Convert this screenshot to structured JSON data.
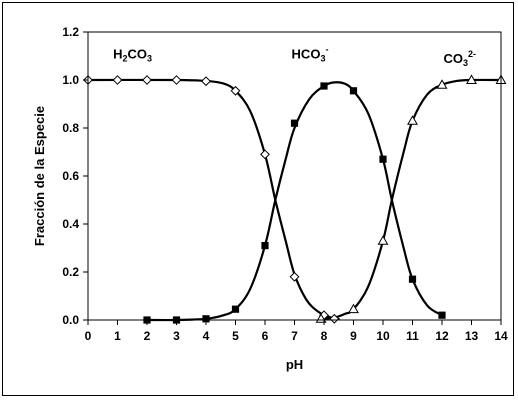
{
  "chart_data": {
    "type": "line",
    "xlabel": "pH",
    "ylabel": "Fracción de la Especie",
    "xlim": [
      0,
      14
    ],
    "ylim": [
      0,
      1.2
    ],
    "xticks": [
      0,
      1,
      2,
      3,
      4,
      5,
      6,
      7,
      8,
      9,
      10,
      11,
      12,
      13,
      14
    ],
    "yticks": [
      0.0,
      0.2,
      0.4,
      0.6,
      0.8,
      1.0,
      1.2
    ],
    "ytick_labels": [
      "0.0",
      "0.2",
      "0.4",
      "0.6",
      "0.8",
      "1.0",
      "1.2"
    ],
    "grid": false,
    "series": [
      {
        "name": "H2CO3",
        "marker": "diamond-open",
        "color": "#000000",
        "points": [
          {
            "x": 0,
            "y": 1.0
          },
          {
            "x": 1,
            "y": 1.0
          },
          {
            "x": 2,
            "y": 1.0
          },
          {
            "x": 3,
            "y": 1.0
          },
          {
            "x": 4,
            "y": 0.995
          },
          {
            "x": 5,
            "y": 0.955
          },
          {
            "x": 6,
            "y": 0.69
          },
          {
            "x": 7,
            "y": 0.18
          },
          {
            "x": 8,
            "y": 0.02
          },
          {
            "x": 8.35,
            "y": 0.005
          }
        ]
      },
      {
        "name": "HCO3-",
        "marker": "square-filled",
        "color": "#000000",
        "points": [
          {
            "x": 2,
            "y": 0.0
          },
          {
            "x": 3,
            "y": 0.0
          },
          {
            "x": 4,
            "y": 0.005
          },
          {
            "x": 5,
            "y": 0.045
          },
          {
            "x": 6,
            "y": 0.31
          },
          {
            "x": 7,
            "y": 0.82
          },
          {
            "x": 8,
            "y": 0.975
          },
          {
            "x": 9,
            "y": 0.955
          },
          {
            "x": 10,
            "y": 0.67
          },
          {
            "x": 11,
            "y": 0.17
          },
          {
            "x": 12,
            "y": 0.02
          }
        ]
      },
      {
        "name": "CO32-",
        "marker": "triangle-open",
        "color": "#000000",
        "points": [
          {
            "x": 7.9,
            "y": 0.005
          },
          {
            "x": 9,
            "y": 0.045
          },
          {
            "x": 10,
            "y": 0.33
          },
          {
            "x": 11,
            "y": 0.83
          },
          {
            "x": 12,
            "y": 0.98
          },
          {
            "x": 13,
            "y": 1.0
          },
          {
            "x": 14,
            "y": 1.0
          }
        ]
      }
    ],
    "curves": [
      {
        "series": "H2CO3",
        "points": [
          [
            0,
            1.0
          ],
          [
            3,
            1.0
          ],
          [
            4,
            0.996
          ],
          [
            4.6,
            0.985
          ],
          [
            5,
            0.955
          ],
          [
            5.5,
            0.87
          ],
          [
            6,
            0.69
          ],
          [
            6.35,
            0.5
          ],
          [
            6.7,
            0.33
          ],
          [
            7,
            0.19
          ],
          [
            7.4,
            0.085
          ],
          [
            7.8,
            0.035
          ],
          [
            8.2,
            0.012
          ],
          [
            8.5,
            0.004
          ]
        ]
      },
      {
        "series": "HCO3-",
        "points": [
          [
            2,
            0.0
          ],
          [
            3,
            0.0
          ],
          [
            4,
            0.005
          ],
          [
            4.6,
            0.02
          ],
          [
            5,
            0.045
          ],
          [
            5.5,
            0.13
          ],
          [
            6,
            0.31
          ],
          [
            6.35,
            0.5
          ],
          [
            6.7,
            0.67
          ],
          [
            7,
            0.8
          ],
          [
            7.5,
            0.92
          ],
          [
            8,
            0.975
          ],
          [
            8.35,
            0.99
          ],
          [
            8.7,
            0.985
          ],
          [
            9,
            0.955
          ],
          [
            9.5,
            0.86
          ],
          [
            10,
            0.67
          ],
          [
            10.3,
            0.5
          ],
          [
            10.7,
            0.3
          ],
          [
            11,
            0.17
          ],
          [
            11.5,
            0.06
          ],
          [
            12,
            0.02
          ]
        ]
      },
      {
        "series": "CO32-",
        "points": [
          [
            7.9,
            0.005
          ],
          [
            8.35,
            0.01
          ],
          [
            8.7,
            0.025
          ],
          [
            9,
            0.045
          ],
          [
            9.5,
            0.14
          ],
          [
            10,
            0.33
          ],
          [
            10.3,
            0.5
          ],
          [
            10.7,
            0.7
          ],
          [
            11,
            0.83
          ],
          [
            11.5,
            0.94
          ],
          [
            12,
            0.98
          ],
          [
            12.5,
            0.996
          ],
          [
            13,
            1.0
          ],
          [
            14,
            1.0
          ]
        ]
      }
    ],
    "annotations": [
      {
        "id": "h2co3",
        "parts": [
          [
            "H",
            "n"
          ],
          [
            "2",
            "sub"
          ],
          [
            "CO",
            "n"
          ],
          [
            "3",
            "sub"
          ]
        ],
        "x": 0.85,
        "y": 1.09
      },
      {
        "id": "hco3",
        "parts": [
          [
            "HCO",
            "n"
          ],
          [
            "3",
            "sub"
          ],
          [
            "-",
            "sup"
          ]
        ],
        "x": 6.9,
        "y": 1.09
      },
      {
        "id": "co32",
        "parts": [
          [
            "CO",
            "n"
          ],
          [
            "3",
            "sub"
          ],
          [
            "2-",
            "sup"
          ]
        ],
        "x": 12.05,
        "y": 1.07
      }
    ]
  }
}
